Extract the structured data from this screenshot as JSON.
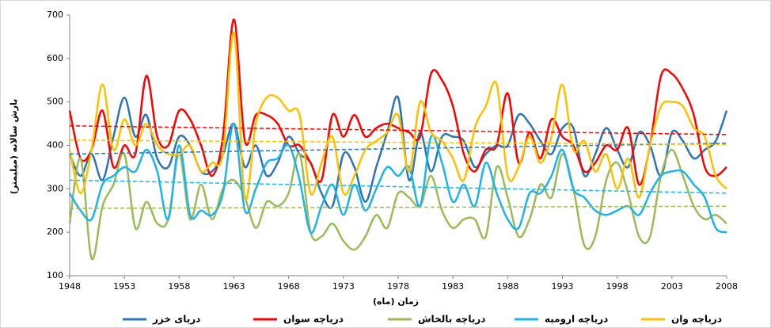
{
  "chart_data": {
    "type": "line",
    "y_label": "بارش سالانه (میلیمتر)",
    "x_label": "زمان (ماه)",
    "x": [
      1948,
      1949,
      1950,
      1951,
      1952,
      1953,
      1954,
      1955,
      1956,
      1957,
      1958,
      1959,
      1960,
      1961,
      1962,
      1963,
      1964,
      1965,
      1966,
      1967,
      1968,
      1969,
      1970,
      1971,
      1972,
      1973,
      1974,
      1975,
      1976,
      1977,
      1978,
      1979,
      1980,
      1981,
      1982,
      1983,
      1984,
      1985,
      1986,
      1987,
      1988,
      1989,
      1990,
      1991,
      1992,
      1993,
      1994,
      1995,
      1996,
      1997,
      1998,
      1999,
      2000,
      2001,
      2002,
      2003,
      2004,
      2005,
      2006,
      2007,
      2008
    ],
    "xlim": [
      1948,
      2008
    ],
    "xticks": [
      1948,
      1953,
      1958,
      1963,
      1968,
      1973,
      1978,
      1983,
      1988,
      1993,
      1998,
      2003,
      2008
    ],
    "ylim": [
      100,
      700
    ],
    "yticks": [
      100,
      200,
      300,
      400,
      500,
      600,
      700
    ],
    "series": [
      {
        "name": "دریای خزر",
        "color": "#2e75b6",
        "trend": [
          380,
          405
        ],
        "values": [
          380,
          330,
          380,
          320,
          420,
          510,
          420,
          470,
          370,
          350,
          420,
          400,
          340,
          340,
          380,
          450,
          350,
          400,
          330,
          360,
          420,
          380,
          360,
          290,
          260,
          380,
          350,
          270,
          350,
          430,
          510,
          320,
          430,
          340,
          420,
          420,
          410,
          350,
          380,
          400,
          400,
          470,
          450,
          410,
          380,
          440,
          440,
          330,
          380,
          440,
          390,
          350,
          430,
          400,
          330,
          430,
          410,
          370,
          390,
          410,
          480
        ]
      },
      {
        "name": "دریاچه سوان",
        "color": "#ff0000",
        "trend": [
          445,
          425
        ],
        "values": [
          480,
          370,
          390,
          480,
          350,
          400,
          380,
          560,
          420,
          400,
          480,
          460,
          400,
          330,
          420,
          690,
          410,
          470,
          470,
          450,
          400,
          400,
          360,
          320,
          470,
          420,
          470,
          420,
          440,
          450,
          440,
          430,
          420,
          565,
          550,
          490,
          380,
          340,
          390,
          400,
          520,
          360,
          430,
          370,
          460,
          420,
          400,
          340,
          360,
          400,
          390,
          440,
          310,
          400,
          560,
          565,
          530,
          470,
          350,
          330,
          350
        ]
      },
      {
        "name": "دریاچه بالخاش",
        "color": "#9bbb59",
        "trend": [
          255,
          260
        ],
        "values": [
          220,
          370,
          140,
          260,
          310,
          380,
          210,
          270,
          220,
          230,
          380,
          230,
          310,
          230,
          300,
          320,
          280,
          210,
          270,
          260,
          290,
          380,
          200,
          190,
          220,
          180,
          160,
          190,
          240,
          210,
          290,
          280,
          260,
          330,
          250,
          210,
          230,
          230,
          190,
          350,
          280,
          190,
          230,
          310,
          280,
          380,
          300,
          170,
          190,
          320,
          360,
          290,
          190,
          190,
          330,
          390,
          330,
          260,
          230,
          240,
          220
        ]
      },
      {
        "name": "دریاچه ارومیه",
        "color": "#1eb4e8",
        "trend": [
          320,
          290
        ],
        "values": [
          290,
          250,
          230,
          310,
          330,
          350,
          340,
          390,
          340,
          230,
          400,
          240,
          250,
          240,
          290,
          450,
          250,
          300,
          360,
          370,
          400,
          320,
          200,
          260,
          310,
          240,
          310,
          250,
          300,
          350,
          330,
          350,
          260,
          420,
          360,
          270,
          310,
          260,
          360,
          290,
          230,
          210,
          290,
          290,
          330,
          390,
          300,
          280,
          250,
          240,
          250,
          260,
          240,
          290,
          330,
          340,
          340,
          310,
          280,
          210,
          200
        ]
      },
      {
        "name": "دریاچه وان",
        "color": "#ffc000",
        "trend": [
          412,
          402
        ],
        "values": [
          390,
          290,
          390,
          540,
          390,
          460,
          400,
          450,
          400,
          380,
          380,
          400,
          340,
          360,
          380,
          660,
          280,
          450,
          510,
          510,
          480,
          470,
          290,
          360,
          420,
          290,
          330,
          390,
          410,
          430,
          470,
          340,
          500,
          430,
          410,
          370,
          320,
          440,
          490,
          540,
          330,
          350,
          420,
          360,
          420,
          540,
          390,
          410,
          340,
          380,
          300,
          370,
          280,
          400,
          490,
          500,
          490,
          440,
          420,
          330,
          300
        ]
      }
    ]
  }
}
